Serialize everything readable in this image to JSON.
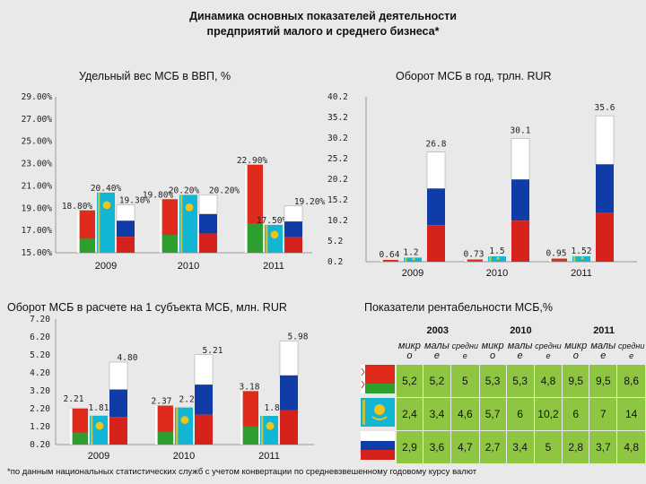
{
  "title_line1": "Динамика основных показателей деятельности",
  "title_line2": "предприятий малого и среднего бизнеса*",
  "colors": {
    "kz_flag": "#13b5d5",
    "kz_ornament": "#f0c419",
    "ru_white": "#ffffff",
    "ru_blue": "#0f3ca7",
    "ru_red": "#d5221c",
    "kg_red": "#e02a1c",
    "green": "#2e9e2e",
    "cell_green": "#8fc641"
  },
  "chart_data": [
    {
      "type": "bar",
      "title": "Удельный вес МСБ в ВВП, %",
      "categories": [
        "2009",
        "2010",
        "2011"
      ],
      "series": [
        {
          "flag": "belarus",
          "values": [
            18.8,
            19.8,
            22.9
          ],
          "labels": [
            "18.80%",
            "19.80%",
            "22.90%"
          ]
        },
        {
          "flag": "kazakhstan",
          "values": [
            20.4,
            20.2,
            17.5
          ],
          "labels": [
            "20.40%",
            "20.20%",
            "17.50%"
          ]
        },
        {
          "flag": "russia",
          "values": [
            19.3,
            20.2,
            19.2
          ],
          "labels": [
            "19.30%",
            "20.20%",
            "19.20%"
          ]
        }
      ],
      "yticks": [
        "29.00%",
        "27.00%",
        "25.00%",
        "23.00%",
        "21.00%",
        "19.00%",
        "17.00%",
        "15.00%"
      ],
      "ylim": [
        15,
        29
      ]
    },
    {
      "type": "bar",
      "title": "Оборот МСБ в год, трлн. RUR",
      "categories": [
        "2009",
        "2010",
        "2011"
      ],
      "series": [
        {
          "flag": "belarus",
          "values": [
            0.64,
            0.73,
            0.95
          ],
          "labels": [
            "0.64",
            "0.73",
            "0.95"
          ]
        },
        {
          "flag": "kazakhstan",
          "values": [
            1.2,
            1.5,
            1.52
          ],
          "labels": [
            "1.2",
            "1.5",
            "1.52"
          ]
        },
        {
          "flag": "russia",
          "values": [
            26.8,
            30.1,
            35.6
          ],
          "labels": [
            "26.8",
            "30.1",
            "35.6"
          ]
        }
      ],
      "yticks": [
        "40.2",
        "35.2",
        "30.2",
        "25.2",
        "20.2",
        "15.2",
        "10.2",
        "5.2",
        "0.2"
      ],
      "ylim": [
        0.2,
        40.2
      ]
    },
    {
      "type": "bar",
      "title": "Оборот МСБ в расчете на 1 субъекта МСБ, млн. RUR",
      "categories": [
        "2009",
        "2010",
        "2011"
      ],
      "series": [
        {
          "flag": "belarus",
          "values": [
            2.21,
            2.37,
            3.18
          ],
          "labels": [
            "2.21",
            "2.37",
            "3.18"
          ]
        },
        {
          "flag": "kazakhstan",
          "values": [
            1.81,
            2.27,
            1.8
          ],
          "labels": [
            "1.81",
            "2.27",
            "1.80"
          ]
        },
        {
          "flag": "russia",
          "values": [
            4.8,
            5.21,
            5.98
          ],
          "labels": [
            "4.80",
            "5.21",
            "5.98"
          ]
        }
      ],
      "yticks": [
        "7.20",
        "6.20",
        "5.20",
        "4.20",
        "3.20",
        "2.20",
        "1.20",
        "0.20"
      ],
      "ylim": [
        0.2,
        7.2
      ]
    },
    {
      "type": "table",
      "title": "Показатели рентабельности МСБ,%",
      "years": [
        "2003",
        "2010",
        "2011"
      ],
      "subheaders": [
        "микр о",
        "малы е",
        "средни е",
        "микр о",
        "малы е",
        "средни е",
        "микр о",
        "малы е",
        "средни е"
      ],
      "rows": [
        {
          "flag": "belarus",
          "values": [
            "5,2",
            "5,2",
            "5",
            "5,3",
            "5,3",
            "4,8",
            "9,5",
            "9,5",
            "8,6"
          ]
        },
        {
          "flag": "kazakhstan",
          "values": [
            "2,4",
            "3,4",
            "4,6",
            "5,7",
            "6",
            "10,2",
            "6",
            "7",
            "14"
          ]
        },
        {
          "flag": "russia",
          "values": [
            "2,9",
            "3,6",
            "4,7",
            "2,7",
            "3,4",
            "5",
            "2,8",
            "3,7",
            "4,8"
          ]
        }
      ]
    }
  ],
  "footnote": "*по данным национальных статистических служб с учетом конвертации по средневзвешенному годовому курсу валют"
}
